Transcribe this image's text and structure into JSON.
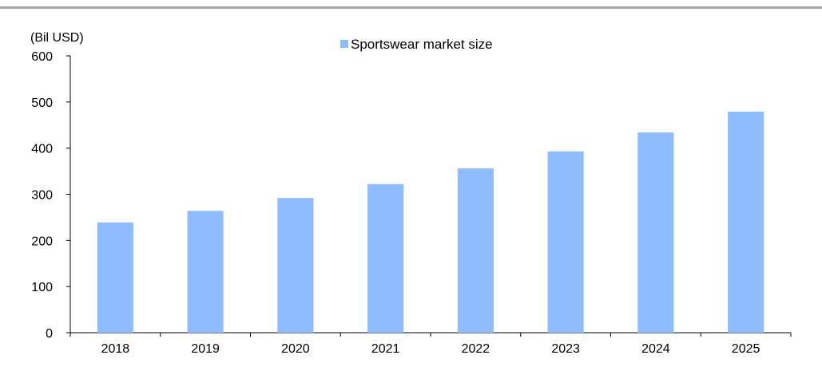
{
  "chart_data": {
    "type": "bar",
    "title": "",
    "unit_label": "(Bil USD)",
    "xlabel": "",
    "ylabel": "",
    "categories": [
      "2018",
      "2019",
      "2020",
      "2021",
      "2022",
      "2023",
      "2024",
      "2025"
    ],
    "series": [
      {
        "name": "Sportswear market size",
        "values": [
          239,
          264,
          292,
          322,
          356,
          393,
          434,
          479
        ],
        "color": "#8fbcff"
      }
    ],
    "ylim": [
      0,
      600
    ],
    "yticks": [
      0,
      100,
      200,
      300,
      400,
      500,
      600
    ],
    "grid": false,
    "legend_position": "top-center"
  },
  "colors": {
    "bar": "#8fbcff",
    "axis": "#000000",
    "top_rule": "#a6a6a6"
  }
}
